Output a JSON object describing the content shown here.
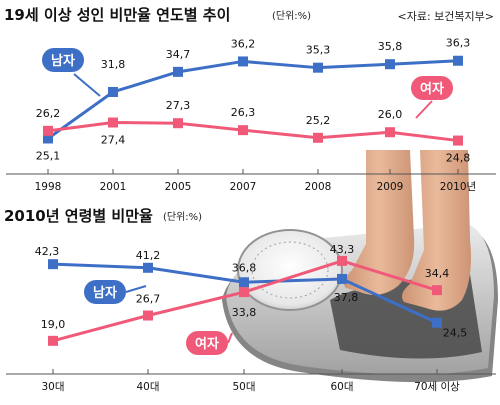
{
  "colors": {
    "male": "#3d6fc6",
    "female": "#f05a78",
    "axis": "#555555"
  },
  "chart_data": [
    {
      "type": "line",
      "title": "19세 이상 성인 비만율 연도별 추이",
      "unit": "(단위:%)",
      "source": "<자료: 보건복지부>",
      "categories": [
        "1998",
        "2001",
        "2005",
        "2007",
        "2008",
        "2009",
        "2010년"
      ],
      "series": [
        {
          "name": "남자",
          "values": [
            25.1,
            31.8,
            34.7,
            36.2,
            35.3,
            35.8,
            36.3
          ],
          "labels": [
            "25,1",
            "31,8",
            "34,7",
            "36,2",
            "35,3",
            "35,8",
            "36,3"
          ]
        },
        {
          "name": "여자",
          "values": [
            26.2,
            27.4,
            27.3,
            26.3,
            25.2,
            26.0,
            24.8
          ],
          "labels": [
            "26,2",
            "27,4",
            "27,3",
            "26,3",
            "25,2",
            "26,0",
            "24,8"
          ]
        }
      ],
      "ylim": [
        22,
        39
      ],
      "grid": false
    },
    {
      "type": "line",
      "title": "2010년 연령별 비만율",
      "unit": "(단위:%)",
      "categories": [
        "30대",
        "40대",
        "50대",
        "60대",
        "70세 이상"
      ],
      "series": [
        {
          "name": "남자",
          "values": [
            42.3,
            41.2,
            36.8,
            37.8,
            24.5
          ],
          "labels": [
            "42,3",
            "41,2",
            "36,8",
            "37,8",
            "24,5"
          ]
        },
        {
          "name": "여자",
          "values": [
            19.0,
            26.7,
            33.8,
            43.3,
            34.4
          ],
          "labels": [
            "19,0",
            "26,7",
            "33,8",
            "43,3",
            "34,4"
          ]
        }
      ],
      "ylim": [
        15,
        46
      ],
      "grid": false
    }
  ]
}
